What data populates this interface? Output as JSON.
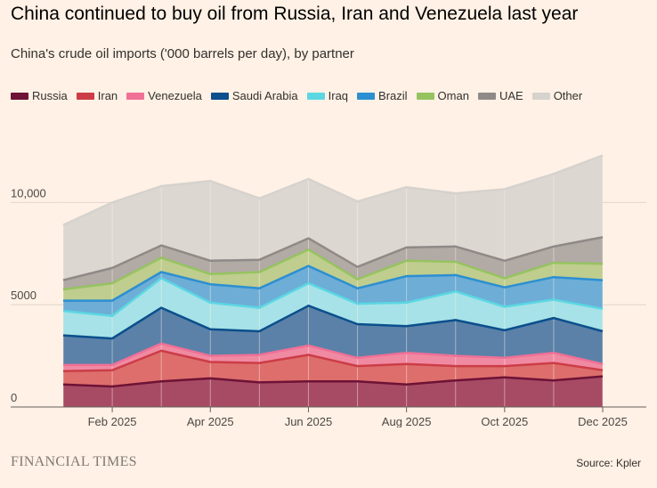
{
  "title": "China continued to buy oil from Russia, Iran and Venezuela last year",
  "subtitle": "China's crude oil imports ('000 barrels per day), by partner",
  "footer": {
    "brand": "FINANCIAL TIMES",
    "source": "Source: Kpler"
  },
  "chart_data": {
    "type": "area",
    "stacked": true,
    "title": "China continued to buy oil from Russia, Iran and Venezuela last year",
    "subtitle": "China's crude oil imports ('000 barrels per day), by partner",
    "xlabel": "",
    "ylabel": "",
    "ylim": [
      0,
      12500
    ],
    "yticks": [
      0,
      5000,
      10000
    ],
    "ytick_labels": [
      "0",
      "5000",
      "10,000"
    ],
    "x": [
      "Jan 2025",
      "Feb 2025",
      "Mar 2025",
      "Apr 2025",
      "May 2025",
      "Jun 2025",
      "Jul 2025",
      "Aug 2025",
      "Sep 2025",
      "Oct 2025",
      "Nov 2025",
      "Dec 2025"
    ],
    "xtick_labels": [
      "Feb 2025",
      "Apr 2025",
      "Jun 2025",
      "Aug 2025",
      "Oct 2025",
      "Dec 2025"
    ],
    "xtick_indices": [
      1,
      3,
      5,
      7,
      9,
      11
    ],
    "legend_position": "top",
    "series": [
      {
        "name": "Russia",
        "color": "#6E1236",
        "fill": "#A74B65",
        "values": [
          1100,
          1000,
          1250,
          1400,
          1200,
          1250,
          1250,
          1100,
          1300,
          1450,
          1300,
          1500
        ]
      },
      {
        "name": "Iran",
        "color": "#CC3D47",
        "fill": "#DD6E6C",
        "values": [
          650,
          800,
          1500,
          800,
          950,
          1300,
          750,
          1000,
          700,
          550,
          850,
          300
        ]
      },
      {
        "name": "Venezuela",
        "color": "#F07096",
        "fill": "#F08AA2",
        "values": [
          300,
          250,
          350,
          300,
          400,
          450,
          400,
          550,
          500,
          400,
          500,
          300
        ]
      },
      {
        "name": "Saudi Arabia",
        "color": "#0B4F8C",
        "fill": "#5B81A8",
        "values": [
          1450,
          1300,
          1750,
          1300,
          1150,
          1950,
          1650,
          1300,
          1750,
          1350,
          1700,
          1600
        ]
      },
      {
        "name": "Iraq",
        "color": "#5BD7E3",
        "fill": "#A6E2E7",
        "values": [
          1200,
          1100,
          1450,
          1300,
          1150,
          1100,
          1000,
          1150,
          1400,
          1150,
          900,
          1100
        ]
      },
      {
        "name": "Brazil",
        "color": "#2C8FD1",
        "fill": "#6DADD6",
        "values": [
          500,
          750,
          300,
          900,
          950,
          850,
          750,
          1300,
          800,
          950,
          1100,
          1400
        ]
      },
      {
        "name": "Oman",
        "color": "#96C360",
        "fill": "#BFCD8E",
        "values": [
          550,
          850,
          700,
          500,
          800,
          800,
          450,
          750,
          650,
          450,
          700,
          800
        ]
      },
      {
        "name": "UAE",
        "color": "#8F8A87",
        "fill": "#B1AAA5",
        "values": [
          450,
          750,
          600,
          650,
          600,
          550,
          600,
          650,
          750,
          850,
          800,
          1300
        ]
      },
      {
        "name": "Other",
        "color": "#D6D2CE",
        "fill": "#DDD7D2",
        "values": [
          2700,
          3200,
          2900,
          3900,
          3000,
          2900,
          3200,
          2950,
          2600,
          3500,
          3550,
          4000
        ]
      }
    ]
  }
}
